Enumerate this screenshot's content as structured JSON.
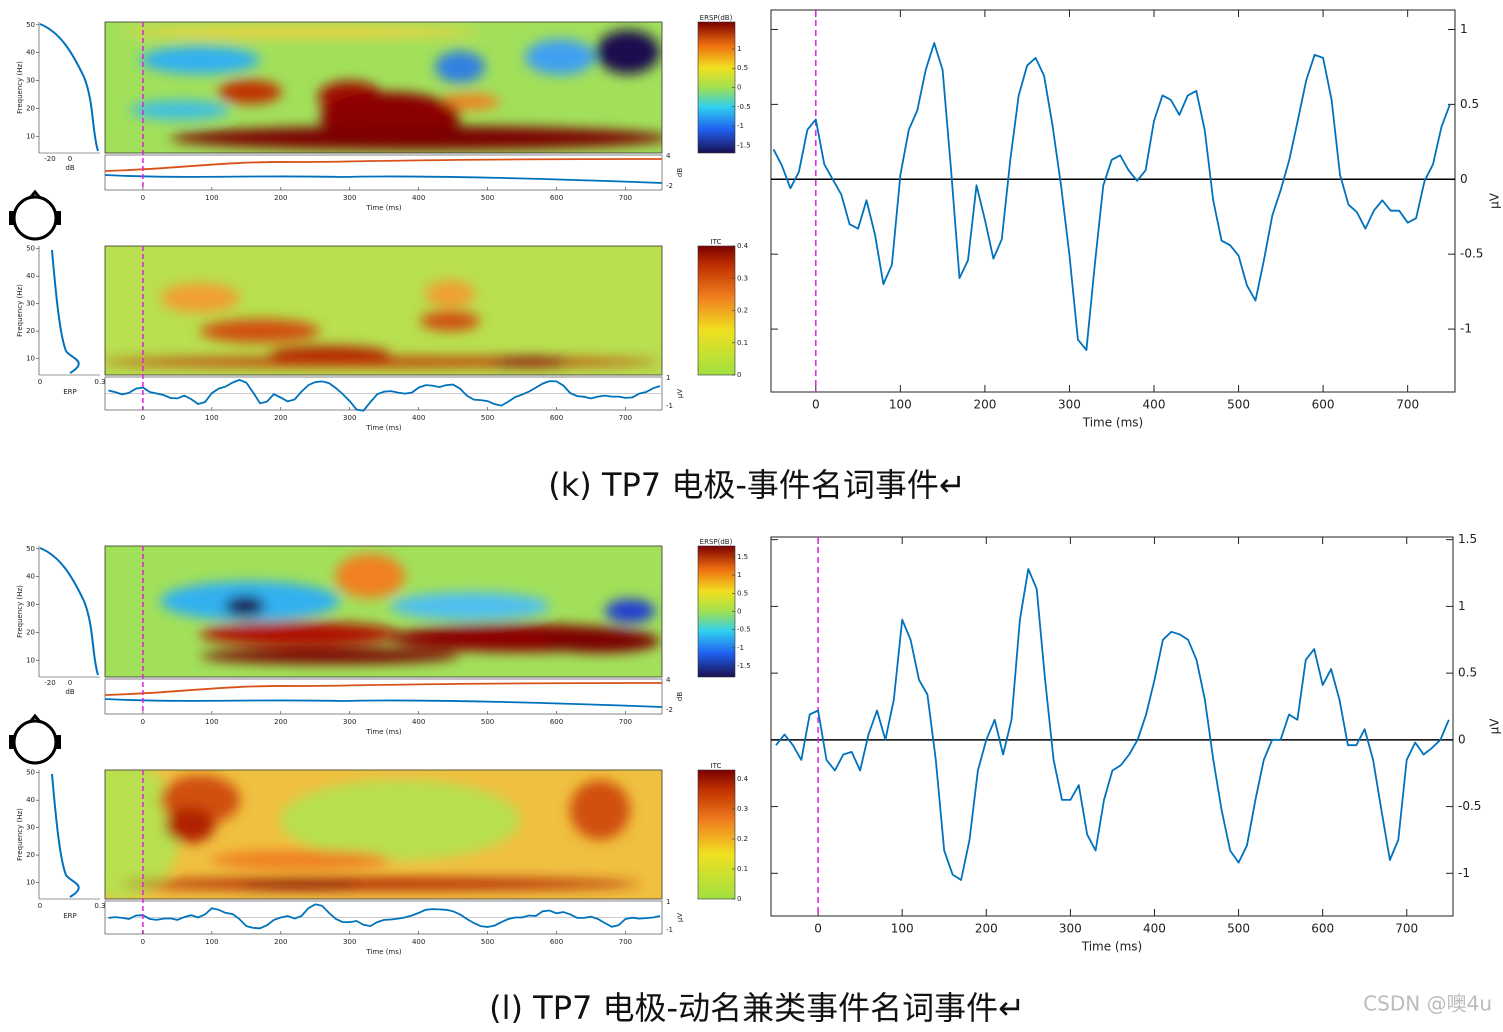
{
  "panels": [
    {
      "caption": "(k) TP7 电极-事件名词事件↵",
      "time_label": "Time (ms)",
      "time_ticks": [
        0,
        100,
        200,
        300,
        400,
        500,
        600,
        700
      ],
      "time_lim": [
        -55,
        753
      ],
      "ersp": {
        "colorbar_title": "ERSP(dB)",
        "colorbar_ticks": [
          1,
          0.5,
          0,
          -0.5,
          -1,
          -1.5
        ],
        "colorbar_lim": [
          -1.7,
          1.7
        ],
        "freq_label": "Frequency (Hz)",
        "freq_ticks": [
          10,
          20,
          30,
          40,
          50
        ],
        "freq_lim": [
          4,
          51
        ],
        "db_label": "dB",
        "db_ticks": [
          -20,
          0
        ],
        "trace_ticks": [
          4,
          -2
        ],
        "trace_unit": "dB"
      },
      "itc": {
        "colorbar_title": "ITC",
        "colorbar_ticks": [
          0.4,
          0.3,
          0.2,
          0.1,
          0
        ],
        "colorbar_lim": [
          0,
          0.4
        ],
        "freq_label": "Frequency (Hz)",
        "freq_ticks": [
          10,
          20,
          30,
          40,
          50
        ],
        "freq_lim": [
          4,
          51
        ],
        "marginal_ticks": [
          0,
          0.3
        ],
        "marginal_label": "ERP",
        "trace_ticks": [
          1,
          -1
        ],
        "trace_lim": [
          -1.1,
          1.1
        ],
        "trace_unit": "μV"
      },
      "erp": {
        "type": "line",
        "color": "#0072bd",
        "event_x": 0,
        "x": [
          -50,
          -40,
          -30,
          -20,
          -10,
          0,
          10,
          20,
          30,
          40,
          50,
          60,
          70,
          80,
          90,
          100,
          110,
          120,
          130,
          140,
          150,
          160,
          170,
          180,
          190,
          200,
          210,
          220,
          230,
          240,
          250,
          260,
          270,
          280,
          290,
          300,
          310,
          320,
          330,
          340,
          350,
          360,
          370,
          380,
          390,
          400,
          410,
          420,
          430,
          440,
          450,
          460,
          470,
          480,
          490,
          500,
          510,
          520,
          530,
          540,
          550,
          560,
          570,
          580,
          590,
          600,
          610,
          620,
          630,
          640,
          650,
          660,
          670,
          680,
          690,
          700,
          710,
          720,
          730,
          740,
          750
        ],
        "values": [
          0.2,
          0.09,
          -0.06,
          0.05,
          0.33,
          0.4,
          0.1,
          0,
          -0.1,
          -0.3,
          -0.33,
          -0.14,
          -0.37,
          -0.7,
          -0.57,
          0.03,
          0.33,
          0.46,
          0.73,
          0.91,
          0.73,
          0.06,
          -0.66,
          -0.54,
          -0.04,
          -0.27,
          -0.53,
          -0.4,
          0.13,
          0.56,
          0.76,
          0.81,
          0.69,
          0.36,
          -0.04,
          -0.51,
          -1.07,
          -1.14,
          -0.57,
          -0.04,
          0.13,
          0.16,
          0.06,
          -0.01,
          0.06,
          0.39,
          0.56,
          0.53,
          0.43,
          0.56,
          0.59,
          0.33,
          -0.14,
          -0.41,
          -0.44,
          -0.51,
          -0.71,
          -0.81,
          -0.54,
          -0.24,
          -0.07,
          0.13,
          0.39,
          0.66,
          0.83,
          0.81,
          0.53,
          0.03,
          -0.17,
          -0.22,
          -0.33,
          -0.21,
          -0.14,
          -0.21,
          -0.21,
          -0.29,
          -0.26,
          -0.01,
          0.1,
          0.35,
          0.5
        ],
        "xlim": [
          -53,
          756
        ],
        "ylim": [
          -1.42,
          1.13
        ],
        "xticks": [
          0,
          100,
          200,
          300,
          400,
          500,
          600,
          700
        ],
        "yticks": [
          1,
          0.5,
          0,
          -0.5,
          -1
        ],
        "xlabel": "Time (ms)",
        "ylabel": "μV"
      }
    },
    {
      "caption": "(l) TP7 电极-动名兼类事件名词事件↵",
      "time_label": "Time (ms)",
      "time_ticks": [
        0,
        100,
        200,
        300,
        400,
        500,
        600,
        700
      ],
      "time_lim": [
        -55,
        753
      ],
      "ersp": {
        "colorbar_title": "ERSP(dB)",
        "colorbar_ticks": [
          1.5,
          1,
          0.5,
          0,
          -0.5,
          -1,
          -1.5
        ],
        "colorbar_lim": [
          -1.8,
          1.8
        ],
        "freq_label": "Frequency (Hz)",
        "freq_ticks": [
          10,
          20,
          30,
          40,
          50
        ],
        "freq_lim": [
          4,
          51
        ],
        "db_label": "dB",
        "db_ticks": [
          -20,
          0
        ],
        "trace_ticks": [
          4,
          -2
        ],
        "trace_unit": "dB"
      },
      "itc": {
        "colorbar_title": "ITC",
        "colorbar_ticks": [
          0.4,
          0.3,
          0.2,
          0.1,
          0
        ],
        "colorbar_lim": [
          0,
          0.43
        ],
        "freq_label": "Frequency (Hz)",
        "freq_ticks": [
          10,
          20,
          30,
          40,
          50
        ],
        "freq_lim": [
          4,
          51
        ],
        "marginal_ticks": [
          0,
          0.3
        ],
        "marginal_label": "ERP",
        "trace_ticks": [
          1,
          -1
        ],
        "trace_lim": [
          -1.6,
          1.6
        ],
        "trace_unit": "μV"
      },
      "erp": {
        "type": "line",
        "color": "#0072bd",
        "event_x": 0,
        "x": [
          -50,
          -40,
          -30,
          -20,
          -10,
          0,
          10,
          20,
          30,
          40,
          50,
          60,
          70,
          80,
          90,
          100,
          110,
          120,
          130,
          140,
          150,
          160,
          170,
          180,
          190,
          200,
          210,
          220,
          230,
          240,
          250,
          260,
          270,
          280,
          290,
          300,
          310,
          320,
          330,
          340,
          350,
          360,
          370,
          380,
          390,
          400,
          410,
          420,
          430,
          440,
          450,
          460,
          470,
          480,
          490,
          500,
          510,
          520,
          530,
          540,
          550,
          560,
          570,
          580,
          590,
          600,
          610,
          620,
          630,
          640,
          650,
          660,
          670,
          680,
          690,
          700,
          710,
          720,
          730,
          740,
          750
        ],
        "values": [
          -0.04,
          0.04,
          -0.04,
          -0.15,
          0.19,
          0.22,
          -0.15,
          -0.23,
          -0.11,
          -0.09,
          -0.23,
          0.04,
          0.22,
          0,
          0.3,
          0.9,
          0.75,
          0.45,
          0.34,
          -0.15,
          -0.83,
          -1.01,
          -1.05,
          -0.75,
          -0.23,
          0,
          0.15,
          -0.11,
          0.15,
          0.9,
          1.28,
          1.13,
          0.45,
          -0.15,
          -0.45,
          -0.45,
          -0.34,
          -0.71,
          -0.83,
          -0.45,
          -0.23,
          -0.19,
          -0.11,
          0,
          0.19,
          0.45,
          0.75,
          0.81,
          0.79,
          0.75,
          0.6,
          0.3,
          -0.15,
          -0.53,
          -0.83,
          -0.92,
          -0.79,
          -0.45,
          -0.15,
          0,
          0,
          0.19,
          0.15,
          0.6,
          0.68,
          0.41,
          0.53,
          0.3,
          -0.04,
          -0.04,
          0.08,
          -0.15,
          -0.53,
          -0.9,
          -0.75,
          -0.15,
          -0.02,
          -0.11,
          -0.06,
          0,
          0.15
        ],
        "xlim": [
          -56,
          755
        ],
        "ylim": [
          -1.32,
          1.52
        ],
        "xticks": [
          0,
          100,
          200,
          300,
          400,
          500,
          600,
          700
        ],
        "yticks": [
          1.5,
          1,
          0.5,
          0,
          -0.5,
          -1
        ],
        "xlabel": "Time (ms)",
        "ylabel": "μV"
      }
    }
  ],
  "watermark": "CSDN @噢4u"
}
